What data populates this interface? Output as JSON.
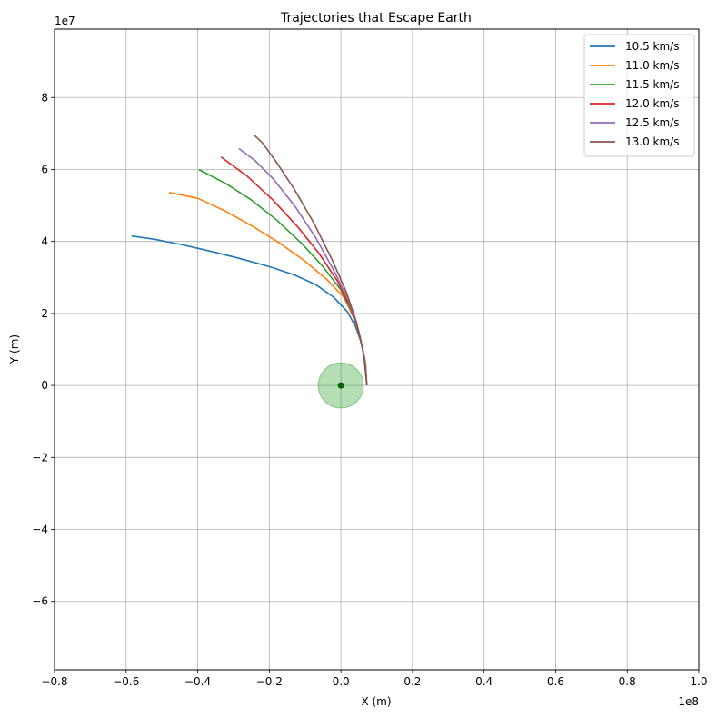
{
  "chart_data": {
    "type": "line",
    "title": "Trajectories that Escape Earth",
    "xlabel": "X (m)",
    "ylabel": "Y (m)",
    "xlim": [
      -0.8,
      1.0
    ],
    "ylim": [
      -7.9,
      9.9
    ],
    "x_scale_label": "1e8",
    "y_scale_label": "1e7",
    "x_ticks": [
      -0.8,
      -0.6,
      -0.4,
      -0.2,
      0.0,
      0.2,
      0.4,
      0.6,
      0.8,
      1.0
    ],
    "x_tick_labels": [
      "−0.8",
      "−0.6",
      "−0.4",
      "−0.2",
      "0.0",
      "0.2",
      "0.4",
      "0.6",
      "0.8",
      "1.0"
    ],
    "y_ticks": [
      -6,
      -4,
      -2,
      0,
      2,
      4,
      6,
      8
    ],
    "y_tick_labels": [
      "−6",
      "−4",
      "−2",
      "0",
      "2",
      "4",
      "6",
      "8"
    ],
    "grid": true,
    "legend_position": "top-right",
    "earth": {
      "x": 0.0,
      "y": 0.0,
      "radius_x": 0.063,
      "color": "#2ca02c"
    },
    "series": [
      {
        "name": "10.5 km/s",
        "color": "#1f77b4",
        "x": [
          0.0727,
          0.069,
          0.058,
          0.041,
          0.018,
          -0.02,
          -0.07,
          -0.13,
          -0.2,
          -0.28,
          -0.36,
          -0.44,
          -0.52,
          -0.585
        ],
        "y": [
          0.0,
          0.6,
          1.15,
          1.63,
          2.05,
          2.45,
          2.8,
          3.07,
          3.3,
          3.52,
          3.72,
          3.9,
          4.06,
          4.15
        ]
      },
      {
        "name": "11.0 km/s",
        "color": "#ff7f0e",
        "x": [
          0.0727,
          0.068,
          0.055,
          0.035,
          0.008,
          -0.04,
          -0.1,
          -0.17,
          -0.24,
          -0.32,
          -0.4,
          -0.48
        ],
        "y": [
          0.0,
          0.65,
          1.3,
          1.9,
          2.45,
          2.95,
          3.45,
          3.95,
          4.38,
          4.83,
          5.2,
          5.36
        ]
      },
      {
        "name": "11.5 km/s",
        "color": "#2ca02c",
        "x": [
          0.0727,
          0.067,
          0.052,
          0.03,
          0.0,
          -0.05,
          -0.11,
          -0.18,
          -0.25,
          -0.32,
          -0.397
        ],
        "y": [
          0.0,
          0.7,
          1.4,
          2.05,
          2.65,
          3.3,
          3.95,
          4.6,
          5.15,
          5.6,
          6.0
        ]
      },
      {
        "name": "12.0 km/s",
        "color": "#d62728",
        "x": [
          0.0727,
          0.066,
          0.05,
          0.025,
          -0.01,
          -0.06,
          -0.12,
          -0.19,
          -0.26,
          -0.335
        ],
        "y": [
          0.0,
          0.75,
          1.5,
          2.2,
          2.9,
          3.65,
          4.4,
          5.15,
          5.8,
          6.35
        ]
      },
      {
        "name": "12.5 km/s",
        "color": "#9467bd",
        "x": [
          0.0727,
          0.065,
          0.047,
          0.02,
          -0.02,
          -0.07,
          -0.13,
          -0.19,
          -0.24,
          -0.285
        ],
        "y": [
          0.0,
          0.8,
          1.6,
          2.4,
          3.2,
          4.1,
          5.0,
          5.75,
          6.25,
          6.58
        ]
      },
      {
        "name": "13.0 km/s",
        "color": "#8c564b",
        "x": [
          0.0727,
          0.064,
          0.044,
          0.015,
          -0.025,
          -0.075,
          -0.13,
          -0.18,
          -0.22,
          -0.245
        ],
        "y": [
          0.0,
          0.85,
          1.75,
          2.6,
          3.5,
          4.5,
          5.45,
          6.2,
          6.75,
          6.98
        ]
      }
    ]
  }
}
